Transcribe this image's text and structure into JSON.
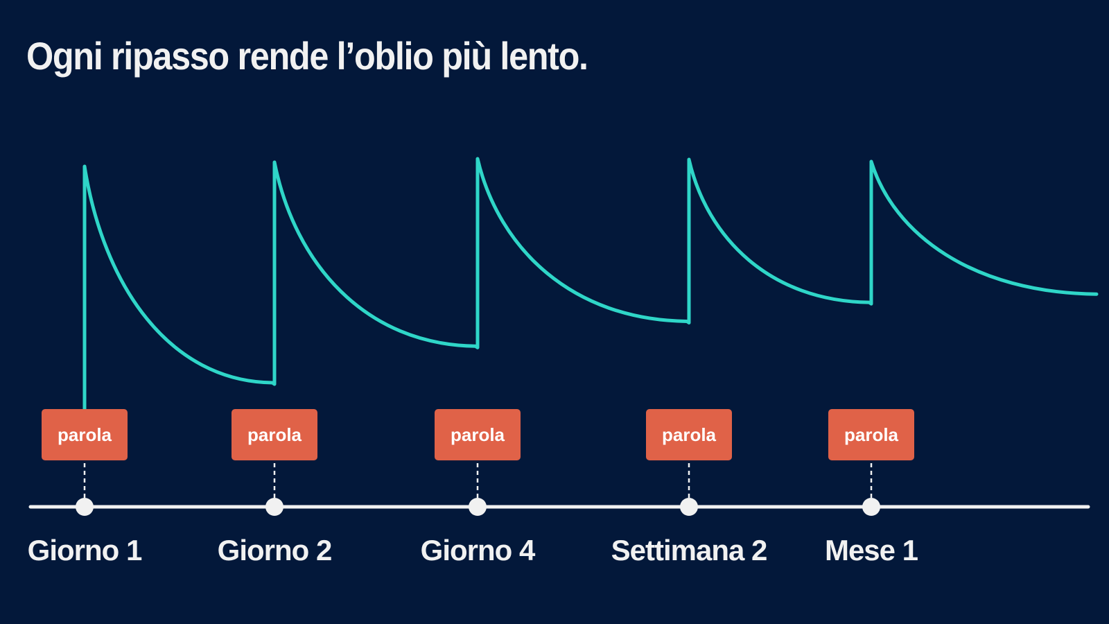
{
  "headline": "Ogni ripasso rende l’oblio più lento.",
  "colors": {
    "background": "#03183a",
    "curve": "#2fd6c8",
    "word_box": "#e06248",
    "text": "#f1f1f1",
    "timeline": "#f1f1f1"
  },
  "reviews": [
    {
      "label": "Giorno 1",
      "word": "parola",
      "peak": 1.0,
      "next_trough": 0.0
    },
    {
      "label": "Giorno 2",
      "word": "parola",
      "peak": 1.0,
      "next_trough": 0.265
    },
    {
      "label": "Giorno 4",
      "word": "parola",
      "peak": 1.0,
      "next_trough": 0.445
    },
    {
      "label": "Settimana 2",
      "word": "parola",
      "peak": 1.0,
      "next_trough": 0.582
    },
    {
      "label": "Mese 1",
      "word": "parola",
      "peak": 1.0,
      "next_trough": 0.642
    }
  ]
}
